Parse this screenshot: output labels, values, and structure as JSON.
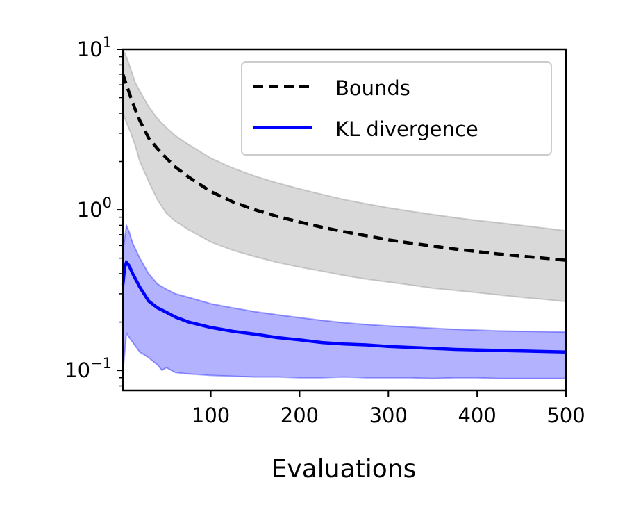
{
  "chart_data": {
    "type": "line",
    "xlabel": "Evaluations",
    "ylabel": "",
    "xlim": [
      1,
      500
    ],
    "ylim": [
      0.075,
      10
    ],
    "yscale": "log",
    "grid": false,
    "legend_position": "top-right",
    "x_ticks": [
      {
        "value": 100,
        "label": "100"
      },
      {
        "value": 200,
        "label": "200"
      },
      {
        "value": 300,
        "label": "300"
      },
      {
        "value": 400,
        "label": "400"
      },
      {
        "value": 500,
        "label": "500"
      }
    ],
    "y_ticks": [
      {
        "value": 0.1,
        "base": "10",
        "exp": "−1"
      },
      {
        "value": 1,
        "base": "10",
        "exp": "0"
      },
      {
        "value": 10,
        "base": "10",
        "exp": "1"
      }
    ],
    "series": [
      {
        "name": "Bounds",
        "color": "#000000",
        "line_style": "dashed",
        "band_color": "#808080",
        "points": [
          [
            1,
            7.0
          ],
          [
            5,
            6.0
          ],
          [
            10,
            5.0
          ],
          [
            15,
            4.2
          ],
          [
            20,
            3.6
          ],
          [
            30,
            2.8
          ],
          [
            40,
            2.4
          ],
          [
            50,
            2.1
          ],
          [
            60,
            1.85
          ],
          [
            75,
            1.6
          ],
          [
            100,
            1.3
          ],
          [
            125,
            1.12
          ],
          [
            150,
            1.0
          ],
          [
            175,
            0.91
          ],
          [
            200,
            0.84
          ],
          [
            225,
            0.78
          ],
          [
            250,
            0.73
          ],
          [
            275,
            0.69
          ],
          [
            300,
            0.65
          ],
          [
            325,
            0.62
          ],
          [
            350,
            0.595
          ],
          [
            375,
            0.57
          ],
          [
            400,
            0.55
          ],
          [
            425,
            0.53
          ],
          [
            450,
            0.515
          ],
          [
            475,
            0.5
          ],
          [
            500,
            0.485
          ]
        ],
        "upper": [
          [
            1,
            10.0
          ],
          [
            5,
            9.0
          ],
          [
            10,
            7.5
          ],
          [
            15,
            6.2
          ],
          [
            20,
            5.5
          ],
          [
            30,
            4.4
          ],
          [
            40,
            3.7
          ],
          [
            50,
            3.25
          ],
          [
            60,
            2.9
          ],
          [
            75,
            2.55
          ],
          [
            100,
            2.1
          ],
          [
            125,
            1.82
          ],
          [
            150,
            1.62
          ],
          [
            175,
            1.47
          ],
          [
            200,
            1.35
          ],
          [
            225,
            1.25
          ],
          [
            250,
            1.16
          ],
          [
            275,
            1.09
          ],
          [
            300,
            1.03
          ],
          [
            325,
            0.98
          ],
          [
            350,
            0.935
          ],
          [
            375,
            0.895
          ],
          [
            400,
            0.86
          ],
          [
            425,
            0.83
          ],
          [
            450,
            0.8
          ],
          [
            475,
            0.77
          ],
          [
            500,
            0.74
          ]
        ],
        "lower": [
          [
            1,
            4.0
          ],
          [
            5,
            3.5
          ],
          [
            10,
            3.0
          ],
          [
            15,
            2.5
          ],
          [
            20,
            2.0
          ],
          [
            30,
            1.5
          ],
          [
            40,
            1.15
          ],
          [
            50,
            0.95
          ],
          [
            60,
            0.85
          ],
          [
            75,
            0.75
          ],
          [
            100,
            0.63
          ],
          [
            125,
            0.56
          ],
          [
            150,
            0.51
          ],
          [
            175,
            0.47
          ],
          [
            200,
            0.44
          ],
          [
            225,
            0.415
          ],
          [
            250,
            0.39
          ],
          [
            275,
            0.37
          ],
          [
            300,
            0.355
          ],
          [
            325,
            0.34
          ],
          [
            350,
            0.325
          ],
          [
            375,
            0.315
          ],
          [
            400,
            0.305
          ],
          [
            425,
            0.295
          ],
          [
            450,
            0.285
          ],
          [
            475,
            0.277
          ],
          [
            500,
            0.268
          ]
        ]
      },
      {
        "name": "KL divergence",
        "color": "#0000ff",
        "line_style": "solid",
        "band_color": "#0000ff",
        "points": [
          [
            1,
            0.34
          ],
          [
            3,
            0.44
          ],
          [
            5,
            0.47
          ],
          [
            8,
            0.45
          ],
          [
            12,
            0.4
          ],
          [
            20,
            0.33
          ],
          [
            30,
            0.27
          ],
          [
            40,
            0.245
          ],
          [
            50,
            0.23
          ],
          [
            60,
            0.215
          ],
          [
            75,
            0.2
          ],
          [
            100,
            0.185
          ],
          [
            125,
            0.175
          ],
          [
            150,
            0.168
          ],
          [
            175,
            0.16
          ],
          [
            200,
            0.155
          ],
          [
            225,
            0.149
          ],
          [
            250,
            0.146
          ],
          [
            275,
            0.144
          ],
          [
            300,
            0.141
          ],
          [
            325,
            0.139
          ],
          [
            350,
            0.137
          ],
          [
            375,
            0.135
          ],
          [
            400,
            0.134
          ],
          [
            425,
            0.133
          ],
          [
            450,
            0.132
          ],
          [
            475,
            0.131
          ],
          [
            500,
            0.13
          ]
        ],
        "upper": [
          [
            1,
            0.55
          ],
          [
            5,
            0.8
          ],
          [
            8,
            0.73
          ],
          [
            12,
            0.62
          ],
          [
            20,
            0.5
          ],
          [
            30,
            0.4
          ],
          [
            40,
            0.345
          ],
          [
            50,
            0.32
          ],
          [
            60,
            0.3
          ],
          [
            75,
            0.285
          ],
          [
            100,
            0.26
          ],
          [
            125,
            0.245
          ],
          [
            150,
            0.232
          ],
          [
            175,
            0.222
          ],
          [
            200,
            0.213
          ],
          [
            225,
            0.205
          ],
          [
            250,
            0.198
          ],
          [
            275,
            0.193
          ],
          [
            300,
            0.189
          ],
          [
            325,
            0.186
          ],
          [
            350,
            0.183
          ],
          [
            375,
            0.18
          ],
          [
            400,
            0.178
          ],
          [
            425,
            0.176
          ],
          [
            450,
            0.175
          ],
          [
            475,
            0.174
          ],
          [
            500,
            0.173
          ]
        ],
        "lower": [
          [
            1,
            0.097
          ],
          [
            5,
            0.17
          ],
          [
            10,
            0.155
          ],
          [
            20,
            0.13
          ],
          [
            30,
            0.12
          ],
          [
            40,
            0.108
          ],
          [
            45,
            0.1
          ],
          [
            50,
            0.104
          ],
          [
            60,
            0.097
          ],
          [
            75,
            0.095
          ],
          [
            100,
            0.093
          ],
          [
            125,
            0.092
          ],
          [
            150,
            0.091
          ],
          [
            175,
            0.091
          ],
          [
            200,
            0.09
          ],
          [
            225,
            0.09
          ],
          [
            250,
            0.091
          ],
          [
            275,
            0.09
          ],
          [
            300,
            0.09
          ],
          [
            325,
            0.09
          ],
          [
            350,
            0.089
          ],
          [
            375,
            0.09
          ],
          [
            400,
            0.09
          ],
          [
            425,
            0.089
          ],
          [
            450,
            0.089
          ],
          [
            475,
            0.089
          ],
          [
            500,
            0.089
          ]
        ]
      }
    ]
  }
}
